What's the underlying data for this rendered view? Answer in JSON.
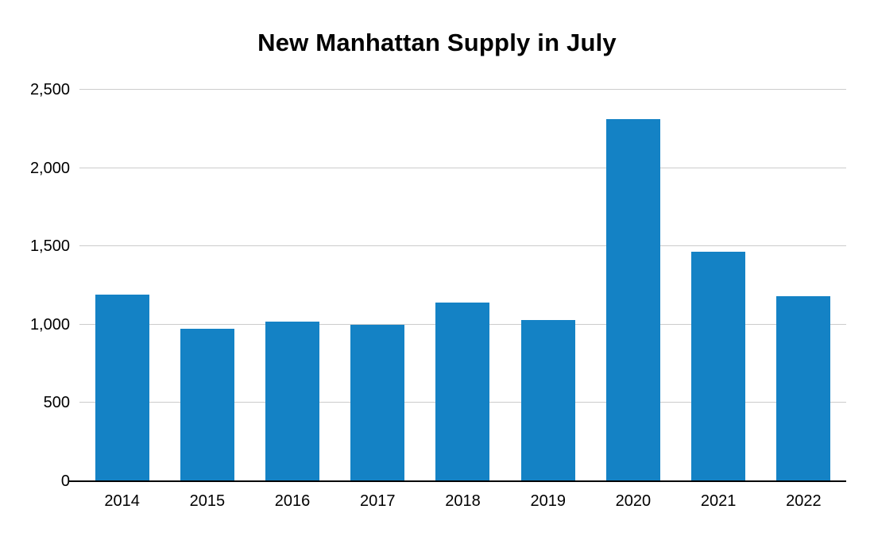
{
  "chart_data": {
    "type": "bar",
    "title": "New Manhattan Supply in July",
    "categories": [
      "2014",
      "2015",
      "2016",
      "2017",
      "2018",
      "2019",
      "2020",
      "2021",
      "2022"
    ],
    "values": [
      1190,
      975,
      1020,
      1000,
      1140,
      1030,
      2310,
      1465,
      1180
    ],
    "xlabel": "",
    "ylabel": "",
    "ylim": [
      0,
      2500
    ],
    "yticks": [
      0,
      500,
      1000,
      1500,
      2000,
      2500
    ],
    "ytick_labels": [
      "0",
      "500",
      "1,000",
      "1,500",
      "2,000",
      "2,500"
    ],
    "grid": true,
    "legend": false,
    "bar_color": "#1482c5",
    "gridline_color": "#cccccc",
    "axis_color": "#000000"
  }
}
